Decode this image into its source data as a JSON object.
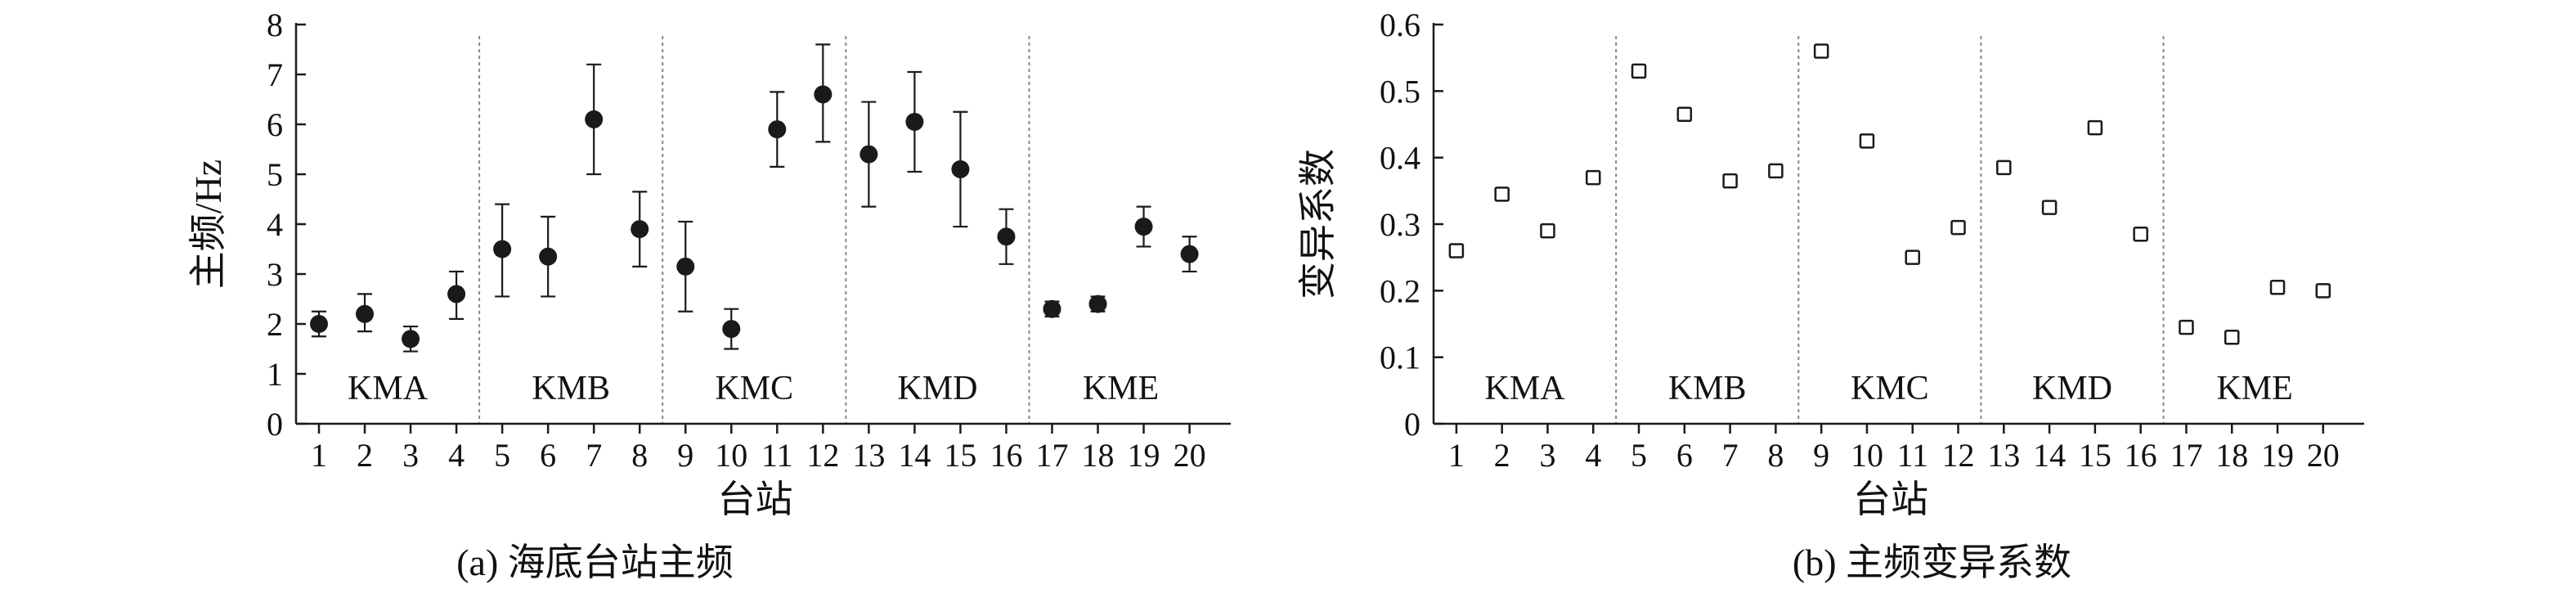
{
  "figures": [
    {
      "caption": "(a) 海底台站主频",
      "chart_data": {
        "type": "scatter",
        "error_bars": true,
        "xlabel": "台站",
        "ylabel": "主频/Hz",
        "x": [
          1,
          2,
          3,
          4,
          5,
          6,
          7,
          8,
          9,
          10,
          11,
          12,
          13,
          14,
          15,
          16,
          17,
          18,
          19,
          20
        ],
        "x_ticks": [
          "1",
          "2",
          "3",
          "4",
          "5",
          "6",
          "7",
          "8",
          "9",
          "10",
          "11",
          "12",
          "13",
          "14",
          "15",
          "16",
          "17",
          "18",
          "19",
          "20"
        ],
        "ylim": [
          0,
          8
        ],
        "y_ticks": [
          "0",
          "1",
          "2",
          "3",
          "4",
          "5",
          "6",
          "7",
          "8"
        ],
        "series": [
          {
            "marker": "filled-circle",
            "values": [
              2.0,
              2.2,
              1.7,
              2.6,
              3.5,
              3.35,
              6.1,
              3.9,
              3.15,
              1.9,
              5.9,
              6.6,
              5.4,
              6.05,
              5.1,
              3.75,
              2.3,
              2.4,
              3.95,
              3.4
            ],
            "error_low": [
              0.25,
              0.35,
              0.25,
              0.5,
              0.95,
              0.8,
              1.1,
              0.75,
              0.9,
              0.4,
              0.75,
              0.95,
              1.05,
              1.0,
              1.15,
              0.55,
              0.15,
              0.15,
              0.4,
              0.35
            ],
            "error_high": [
              0.25,
              0.4,
              0.25,
              0.45,
              0.9,
              0.8,
              1.1,
              0.75,
              0.9,
              0.4,
              0.75,
              1.0,
              1.05,
              1.0,
              1.15,
              0.55,
              0.15,
              0.15,
              0.4,
              0.35
            ]
          }
        ],
        "groups": [
          {
            "label": "KMA",
            "from": 1,
            "to": 4
          },
          {
            "label": "KMB",
            "from": 5,
            "to": 8
          },
          {
            "label": "KMC",
            "from": 9,
            "to": 12
          },
          {
            "label": "KMD",
            "from": 13,
            "to": 16
          },
          {
            "label": "KME",
            "from": 17,
            "to": 20
          }
        ],
        "group_dividers": [
          4.5,
          8.5,
          12.5,
          16.5
        ],
        "grid": false,
        "color": "#1a1a1a",
        "divider_color": "#888888"
      }
    },
    {
      "caption": "(b) 主频变异系数",
      "chart_data": {
        "type": "scatter",
        "xlabel": "台站",
        "ylabel": "变异系数",
        "x": [
          1,
          2,
          3,
          4,
          5,
          6,
          7,
          8,
          9,
          10,
          11,
          12,
          13,
          14,
          15,
          16,
          17,
          18,
          19,
          20
        ],
        "x_ticks": [
          "1",
          "2",
          "3",
          "4",
          "5",
          "6",
          "7",
          "8",
          "9",
          "10",
          "11",
          "12",
          "13",
          "14",
          "15",
          "16",
          "17",
          "18",
          "19",
          "20"
        ],
        "ylim": [
          0,
          0.6
        ],
        "y_ticks": [
          "0",
          "0.1",
          "0.2",
          "0.3",
          "0.4",
          "0.5",
          "0.6"
        ],
        "series": [
          {
            "marker": "hollow-square",
            "values": [
              0.26,
              0.345,
              0.29,
              0.37,
              0.53,
              0.465,
              0.365,
              0.38,
              0.56,
              0.425,
              0.25,
              0.295,
              0.385,
              0.325,
              0.445,
              0.285,
              0.145,
              0.13,
              0.205,
              0.2
            ]
          }
        ],
        "groups": [
          {
            "label": "KMA",
            "from": 1,
            "to": 4
          },
          {
            "label": "KMB",
            "from": 5,
            "to": 8
          },
          {
            "label": "KMC",
            "from": 9,
            "to": 12
          },
          {
            "label": "KMD",
            "from": 13,
            "to": 16
          },
          {
            "label": "KME",
            "from": 17,
            "to": 20
          }
        ],
        "group_dividers": [
          4.5,
          8.5,
          12.5,
          16.5
        ],
        "grid": false,
        "color": "#1a1a1a",
        "divider_color": "#888888"
      }
    }
  ]
}
